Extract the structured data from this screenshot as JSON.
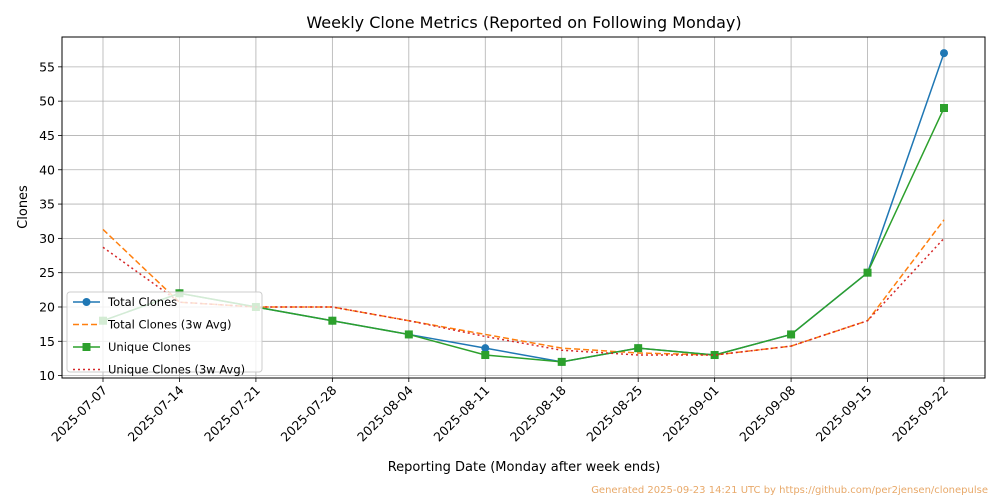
{
  "chart_data": {
    "type": "line",
    "title": "Weekly Clone Metrics (Reported on Following Monday)",
    "xlabel": "Reporting Date (Monday after week ends)",
    "ylabel": "Clones",
    "categories": [
      "2025-07-07",
      "2025-07-14",
      "2025-07-21",
      "2025-07-28",
      "2025-08-04",
      "2025-08-11",
      "2025-08-18",
      "2025-08-25",
      "2025-09-01",
      "2025-09-08",
      "2025-09-15",
      "2025-09-22"
    ],
    "yticks": [
      10,
      15,
      20,
      25,
      30,
      35,
      40,
      45,
      50,
      55
    ],
    "ylim": [
      9.65,
      59.35
    ],
    "grid": true,
    "legend_position": "lower-left",
    "series": [
      {
        "name": "Total Clones",
        "color": "#1f77b4",
        "line_style": "solid",
        "marker": "circle",
        "values": [
          18,
          22,
          20,
          18,
          16,
          14,
          12,
          14,
          13,
          16,
          25,
          57
        ]
      },
      {
        "name": "Total Clones (3w Avg)",
        "color": "#ff7f0e",
        "line_style": "dashed",
        "marker": "none",
        "values": [
          31.3,
          20.7,
          20,
          20,
          18,
          16,
          14,
          13.3,
          13,
          14.3,
          18,
          32.7
        ]
      },
      {
        "name": "Unique Clones",
        "color": "#2ca02c",
        "line_style": "solid",
        "marker": "square",
        "values": [
          18,
          22,
          20,
          18,
          16,
          13,
          12,
          14,
          13,
          16,
          25,
          49
        ]
      },
      {
        "name": "Unique Clones (3w Avg)",
        "color": "#d62728",
        "line_style": "dotted",
        "marker": "none",
        "values": [
          28.7,
          20.7,
          20,
          20,
          18,
          15.7,
          13.7,
          13,
          13,
          14.3,
          18,
          30
        ]
      }
    ]
  },
  "footer": {
    "text": "Generated 2025-09-23 14:21 UTC by https://github.com/per2jensen/clonepulse"
  }
}
